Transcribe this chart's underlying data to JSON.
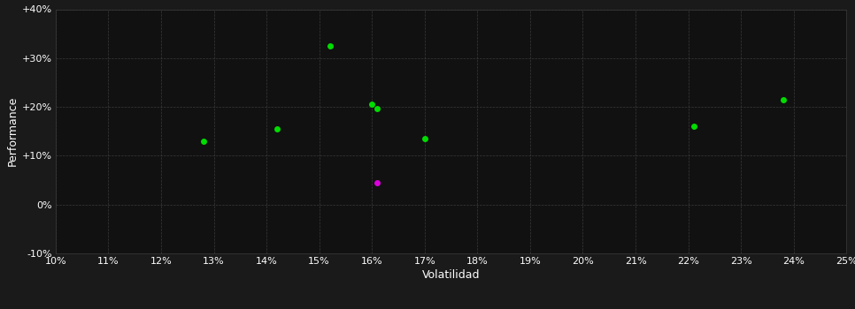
{
  "background_color": "#1a1a1a",
  "plot_bg_color": "#111111",
  "grid_color": "#3a3a3a",
  "text_color": "#ffffff",
  "xlabel": "Volatilidad",
  "ylabel": "Performance",
  "xlim": [
    0.1,
    0.25
  ],
  "ylim": [
    -0.1,
    0.4
  ],
  "xticks": [
    0.1,
    0.11,
    0.12,
    0.13,
    0.14,
    0.15,
    0.16,
    0.17,
    0.18,
    0.19,
    0.2,
    0.21,
    0.22,
    0.23,
    0.24,
    0.25
  ],
  "yticks": [
    -0.1,
    0.0,
    0.1,
    0.2,
    0.3,
    0.4
  ],
  "green_points": [
    [
      0.128,
      0.13
    ],
    [
      0.142,
      0.155
    ],
    [
      0.152,
      0.325
    ],
    [
      0.16,
      0.205
    ],
    [
      0.161,
      0.197
    ],
    [
      0.17,
      0.135
    ],
    [
      0.221,
      0.16
    ],
    [
      0.238,
      0.215
    ]
  ],
  "magenta_points": [
    [
      0.161,
      0.045
    ]
  ],
  "green_color": "#00dd00",
  "magenta_color": "#dd00dd",
  "marker_size": 5
}
